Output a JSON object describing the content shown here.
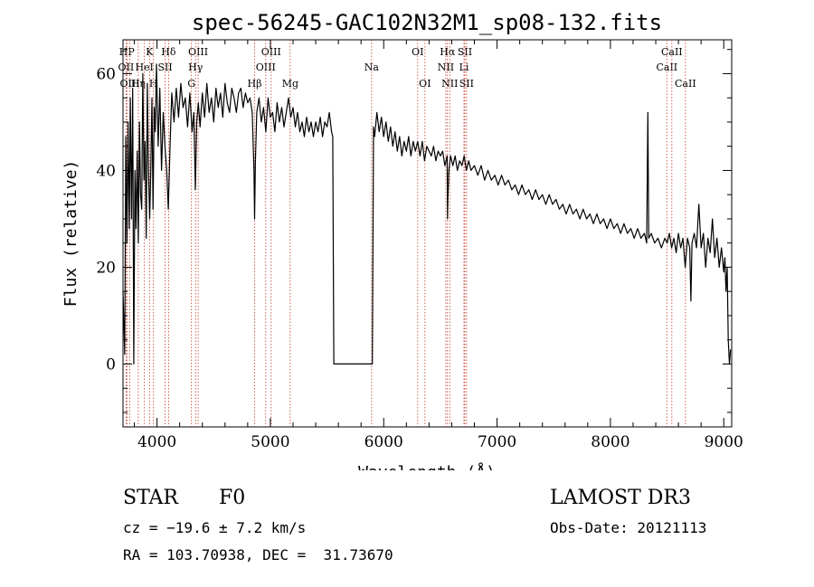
{
  "chart_data": {
    "type": "line",
    "title": "spec-56245-GAC102N32M1_sp08-132.fits",
    "xlabel": "Wavelength (Å)",
    "ylabel": "Flux (relative)",
    "xlim": [
      3700,
      9070
    ],
    "ylim": [
      -13,
      67
    ],
    "x_ticks": [
      4000,
      5000,
      6000,
      7000,
      8000,
      9000
    ],
    "y_ticks": [
      0,
      20,
      40,
      60
    ],
    "grid": false,
    "series": [
      {
        "name": "spectrum",
        "points": [
          [
            3700,
            15
          ],
          [
            3715,
            2
          ],
          [
            3725,
            47
          ],
          [
            3735,
            25
          ],
          [
            3745,
            50
          ],
          [
            3755,
            28
          ],
          [
            3765,
            55
          ],
          [
            3775,
            30
          ],
          [
            3785,
            57
          ],
          [
            3795,
            0
          ],
          [
            3805,
            40
          ],
          [
            3815,
            28
          ],
          [
            3825,
            44
          ],
          [
            3835,
            25
          ],
          [
            3845,
            50
          ],
          [
            3855,
            35
          ],
          [
            3865,
            32
          ],
          [
            3875,
            60
          ],
          [
            3885,
            38
          ],
          [
            3895,
            46
          ],
          [
            3905,
            26
          ],
          [
            3915,
            58
          ],
          [
            3925,
            40
          ],
          [
            3935,
            30
          ],
          [
            3945,
            40
          ],
          [
            3955,
            55
          ],
          [
            3965,
            32
          ],
          [
            3975,
            53
          ],
          [
            3985,
            48
          ],
          [
            3995,
            62
          ],
          [
            4010,
            45
          ],
          [
            4025,
            57
          ],
          [
            4040,
            40
          ],
          [
            4055,
            52
          ],
          [
            4070,
            45
          ],
          [
            4085,
            40
          ],
          [
            4100,
            32
          ],
          [
            4115,
            45
          ],
          [
            4130,
            56
          ],
          [
            4150,
            50
          ],
          [
            4170,
            57
          ],
          [
            4190,
            51
          ],
          [
            4210,
            58
          ],
          [
            4230,
            53
          ],
          [
            4250,
            55
          ],
          [
            4270,
            49
          ],
          [
            4290,
            56
          ],
          [
            4310,
            48
          ],
          [
            4325,
            52
          ],
          [
            4338,
            36
          ],
          [
            4350,
            50
          ],
          [
            4365,
            54
          ],
          [
            4380,
            49
          ],
          [
            4400,
            56
          ],
          [
            4420,
            51
          ],
          [
            4440,
            58
          ],
          [
            4460,
            52
          ],
          [
            4480,
            55
          ],
          [
            4500,
            50
          ],
          [
            4520,
            57
          ],
          [
            4540,
            53
          ],
          [
            4560,
            56
          ],
          [
            4580,
            51
          ],
          [
            4600,
            58
          ],
          [
            4620,
            54
          ],
          [
            4640,
            52
          ],
          [
            4660,
            57
          ],
          [
            4680,
            55
          ],
          [
            4700,
            52
          ],
          [
            4720,
            56
          ],
          [
            4740,
            57
          ],
          [
            4760,
            53
          ],
          [
            4780,
            56
          ],
          [
            4800,
            54
          ],
          [
            4820,
            55
          ],
          [
            4840,
            52
          ],
          [
            4855,
            40
          ],
          [
            4861,
            30
          ],
          [
            4868,
            42
          ],
          [
            4880,
            52
          ],
          [
            4900,
            55
          ],
          [
            4920,
            50
          ],
          [
            4940,
            53
          ],
          [
            4960,
            48
          ],
          [
            4980,
            55
          ],
          [
            5000,
            51
          ],
          [
            5020,
            52
          ],
          [
            5040,
            48
          ],
          [
            5060,
            54
          ],
          [
            5080,
            50
          ],
          [
            5100,
            53
          ],
          [
            5120,
            49
          ],
          [
            5140,
            52
          ],
          [
            5160,
            55
          ],
          [
            5180,
            51
          ],
          [
            5200,
            53
          ],
          [
            5220,
            49
          ],
          [
            5240,
            52
          ],
          [
            5260,
            48
          ],
          [
            5280,
            50
          ],
          [
            5300,
            47
          ],
          [
            5320,
            51
          ],
          [
            5340,
            48
          ],
          [
            5360,
            50
          ],
          [
            5380,
            47
          ],
          [
            5400,
            50
          ],
          [
            5420,
            48
          ],
          [
            5440,
            51
          ],
          [
            5460,
            47
          ],
          [
            5480,
            50
          ],
          [
            5500,
            49
          ],
          [
            5520,
            52
          ],
          [
            5540,
            48
          ],
          [
            5550,
            47
          ],
          [
            5560,
            0
          ],
          [
            5900,
            0
          ],
          [
            5910,
            49
          ],
          [
            5920,
            47
          ],
          [
            5940,
            52
          ],
          [
            5960,
            48
          ],
          [
            5980,
            51
          ],
          [
            6000,
            47
          ],
          [
            6020,
            50
          ],
          [
            6040,
            46
          ],
          [
            6060,
            49
          ],
          [
            6080,
            45
          ],
          [
            6100,
            48
          ],
          [
            6120,
            44
          ],
          [
            6140,
            47
          ],
          [
            6160,
            43
          ],
          [
            6180,
            46
          ],
          [
            6200,
            44
          ],
          [
            6220,
            47
          ],
          [
            6240,
            43
          ],
          [
            6260,
            46
          ],
          [
            6280,
            44
          ],
          [
            6300,
            46
          ],
          [
            6320,
            43
          ],
          [
            6340,
            46
          ],
          [
            6360,
            42
          ],
          [
            6380,
            45
          ],
          [
            6400,
            44
          ],
          [
            6420,
            43
          ],
          [
            6440,
            45
          ],
          [
            6460,
            42
          ],
          [
            6480,
            44
          ],
          [
            6500,
            43
          ],
          [
            6520,
            44
          ],
          [
            6540,
            41
          ],
          [
            6560,
            43
          ],
          [
            6563,
            30
          ],
          [
            6566,
            34
          ],
          [
            6575,
            40
          ],
          [
            6590,
            43
          ],
          [
            6610,
            41
          ],
          [
            6630,
            43
          ],
          [
            6650,
            40
          ],
          [
            6670,
            42
          ],
          [
            6690,
            41
          ],
          [
            6710,
            43
          ],
          [
            6730,
            40
          ],
          [
            6750,
            42
          ],
          [
            6770,
            40
          ],
          [
            6800,
            41
          ],
          [
            6830,
            39
          ],
          [
            6860,
            41
          ],
          [
            6890,
            38
          ],
          [
            6920,
            40
          ],
          [
            6950,
            38
          ],
          [
            6980,
            39
          ],
          [
            7010,
            37
          ],
          [
            7040,
            39
          ],
          [
            7070,
            37
          ],
          [
            7100,
            38
          ],
          [
            7130,
            36
          ],
          [
            7160,
            37
          ],
          [
            7190,
            35
          ],
          [
            7220,
            37
          ],
          [
            7250,
            35
          ],
          [
            7280,
            36
          ],
          [
            7310,
            34
          ],
          [
            7340,
            36
          ],
          [
            7370,
            34
          ],
          [
            7400,
            35
          ],
          [
            7430,
            33
          ],
          [
            7460,
            35
          ],
          [
            7490,
            33
          ],
          [
            7520,
            34
          ],
          [
            7550,
            32
          ],
          [
            7580,
            33
          ],
          [
            7610,
            31
          ],
          [
            7640,
            33
          ],
          [
            7670,
            31
          ],
          [
            7700,
            32
          ],
          [
            7730,
            30
          ],
          [
            7760,
            32
          ],
          [
            7790,
            30
          ],
          [
            7820,
            31
          ],
          [
            7850,
            29
          ],
          [
            7880,
            31
          ],
          [
            7910,
            29
          ],
          [
            7940,
            30
          ],
          [
            7970,
            28
          ],
          [
            8000,
            30
          ],
          [
            8030,
            28
          ],
          [
            8060,
            29
          ],
          [
            8090,
            27
          ],
          [
            8120,
            29
          ],
          [
            8150,
            27
          ],
          [
            8180,
            28
          ],
          [
            8210,
            26
          ],
          [
            8240,
            28
          ],
          [
            8270,
            26
          ],
          [
            8300,
            27
          ],
          [
            8320,
            25
          ],
          [
            8330,
            52
          ],
          [
            8338,
            26
          ],
          [
            8360,
            27
          ],
          [
            8390,
            25
          ],
          [
            8420,
            26
          ],
          [
            8450,
            24
          ],
          [
            8480,
            26
          ],
          [
            8500,
            25
          ],
          [
            8520,
            27
          ],
          [
            8540,
            24
          ],
          [
            8560,
            26
          ],
          [
            8580,
            23
          ],
          [
            8600,
            27
          ],
          [
            8620,
            24
          ],
          [
            8640,
            26
          ],
          [
            8660,
            20
          ],
          [
            8680,
            26
          ],
          [
            8700,
            24
          ],
          [
            8710,
            13
          ],
          [
            8720,
            25
          ],
          [
            8740,
            27
          ],
          [
            8760,
            24
          ],
          [
            8780,
            33
          ],
          [
            8800,
            24
          ],
          [
            8820,
            27
          ],
          [
            8840,
            20
          ],
          [
            8860,
            26
          ],
          [
            8880,
            23
          ],
          [
            8900,
            30
          ],
          [
            8920,
            22
          ],
          [
            8940,
            26
          ],
          [
            8960,
            20
          ],
          [
            8980,
            24
          ],
          [
            9000,
            19
          ],
          [
            9010,
            22
          ],
          [
            9020,
            15
          ],
          [
            9030,
            20
          ],
          [
            9040,
            5
          ],
          [
            9050,
            0
          ],
          [
            9060,
            3
          ]
        ]
      }
    ],
    "lines": [
      {
        "label": "HP",
        "wavelength": 3734,
        "row": 0
      },
      {
        "label": "OII",
        "wavelength": 3727,
        "row": 1
      },
      {
        "label": "OIII",
        "wavelength": 3760,
        "row": 2
      },
      {
        "label": "Hη",
        "wavelength": 3835,
        "row": 2
      },
      {
        "label": "K",
        "wavelength": 3934,
        "row": 0
      },
      {
        "label": "HeI",
        "wavelength": 3889,
        "row": 1
      },
      {
        "label": "H",
        "wavelength": 3969,
        "row": 2
      },
      {
        "label": "SII",
        "wavelength": 4072,
        "row": 1
      },
      {
        "label": "Hδ",
        "wavelength": 4102,
        "row": 0
      },
      {
        "label": "OIII",
        "wavelength": 4363,
        "row": 0
      },
      {
        "label": "Hγ",
        "wavelength": 4340,
        "row": 1
      },
      {
        "label": "G",
        "wavelength": 4304,
        "row": 2
      },
      {
        "label": "Hβ",
        "wavelength": 4861,
        "row": 2
      },
      {
        "label": "OIII",
        "wavelength": 4959,
        "row": 1
      },
      {
        "label": "OIII",
        "wavelength": 5007,
        "row": 0
      },
      {
        "label": "Mg",
        "wavelength": 5175,
        "row": 2
      },
      {
        "label": "Na",
        "wavelength": 5893,
        "row": 1
      },
      {
        "label": "OI",
        "wavelength": 6300,
        "row": 0
      },
      {
        "label": "OI",
        "wavelength": 6364,
        "row": 2
      },
      {
        "label": "NII",
        "wavelength": 6548,
        "row": 1
      },
      {
        "label": "Hα",
        "wavelength": 6563,
        "row": 0
      },
      {
        "label": "NII",
        "wavelength": 6583,
        "row": 2
      },
      {
        "label": "Li",
        "wavelength": 6708,
        "row": 1
      },
      {
        "label": "SII",
        "wavelength": 6716,
        "row": 0
      },
      {
        "label": "SII",
        "wavelength": 6731,
        "row": 2
      },
      {
        "label": "CaII",
        "wavelength": 8498,
        "row": 1
      },
      {
        "label": "CaII",
        "wavelength": 8542,
        "row": 0
      },
      {
        "label": "CaII",
        "wavelength": 8662,
        "row": 2
      }
    ]
  },
  "info": {
    "class_label": "STAR",
    "subclass": "F0",
    "survey": "LAMOST DR3",
    "cz_line": "cz = −19.6 ± 7.2 km/s",
    "obs_date_line": "Obs-Date: 20121113",
    "coords_line": "RA = 103.70938, DEC =  31.73670"
  }
}
